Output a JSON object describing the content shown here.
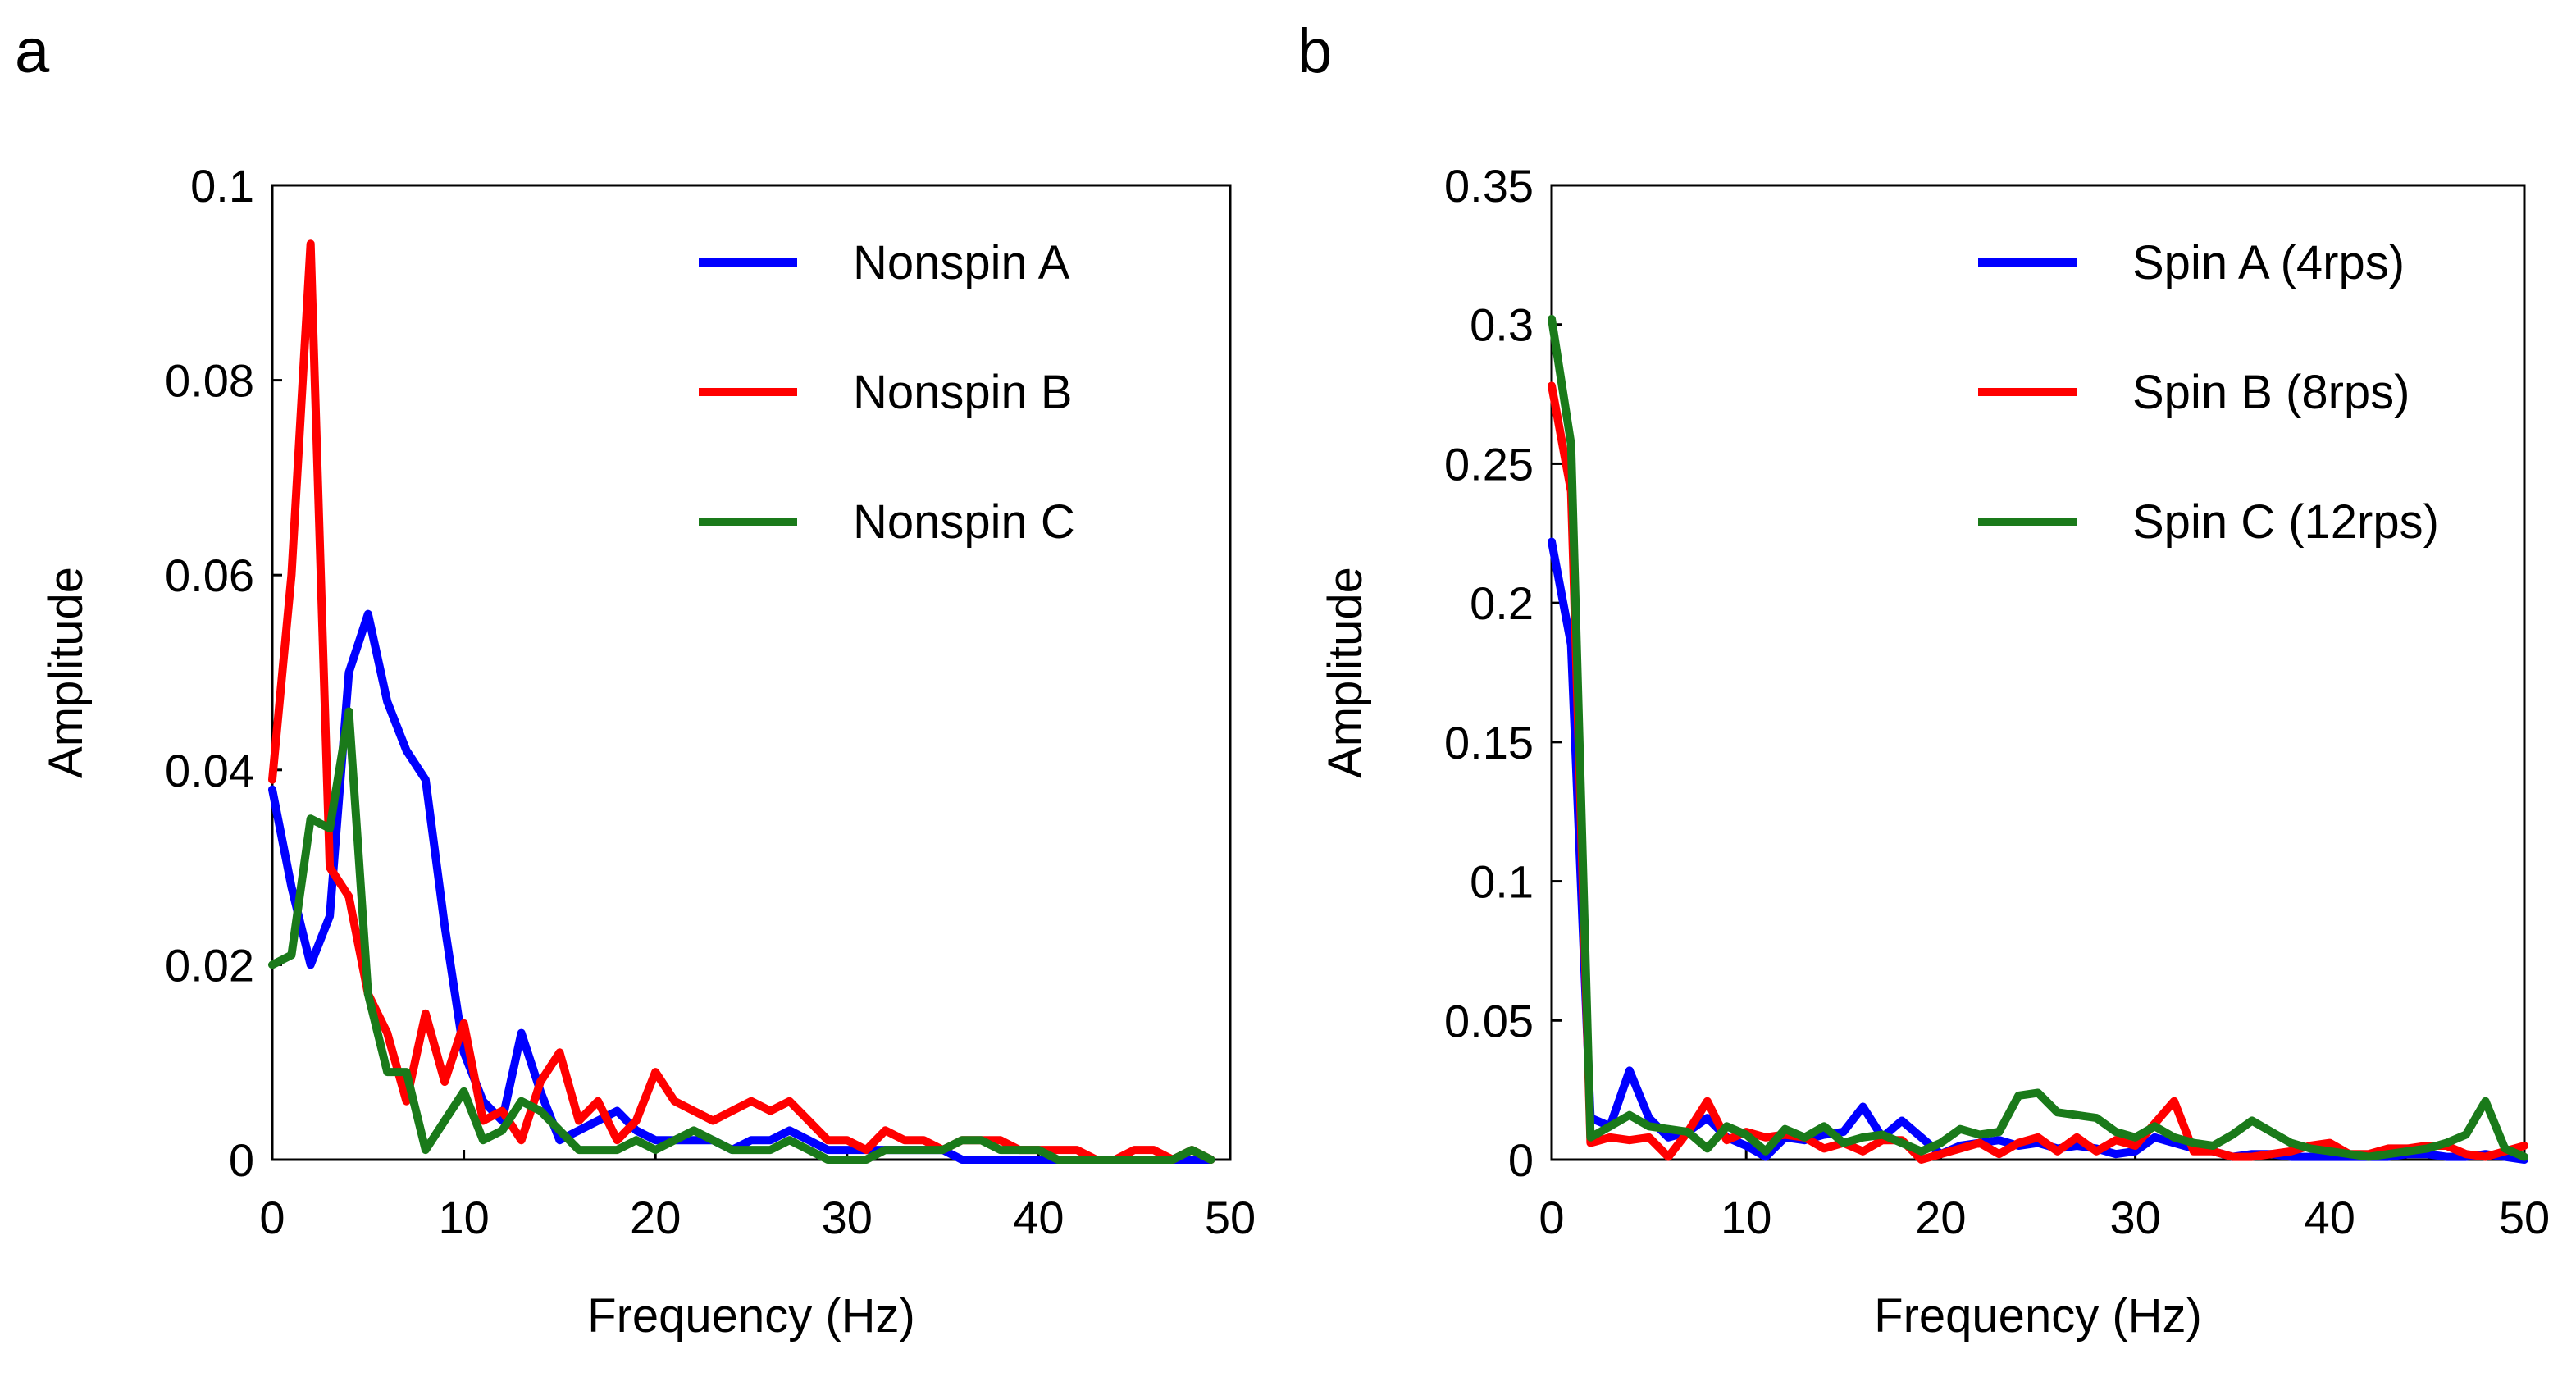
{
  "chart_data": [
    {
      "type": "line",
      "panel": "a",
      "title": "",
      "xlabel": "Frequency (Hz)",
      "ylabel": "Amplitude",
      "xlim": [
        0,
        50
      ],
      "ylim": [
        0,
        0.1
      ],
      "xticks": [
        "0",
        "10",
        "20",
        "30",
        "40",
        "50"
      ],
      "yticks": [
        "0",
        "0.02",
        "0.04",
        "0.06",
        "0.08",
        "0.1"
      ],
      "xtick_values": [
        0,
        10,
        20,
        30,
        40,
        50
      ],
      "ytick_values": [
        0,
        0.02,
        0.04,
        0.06,
        0.08,
        0.1
      ],
      "legend_position": "top-right",
      "grid": false,
      "x": [
        0,
        1,
        2,
        3,
        4,
        5,
        6,
        7,
        8,
        9,
        10,
        11,
        12,
        13,
        14,
        15,
        16,
        17,
        18,
        19,
        20,
        21,
        22,
        23,
        24,
        25,
        26,
        27,
        28,
        29,
        30,
        31,
        32,
        33,
        34,
        35,
        36,
        37,
        38,
        39,
        40,
        41,
        42,
        43,
        44,
        45,
        46,
        47,
        48,
        49
      ],
      "series": [
        {
          "name": "Nonspin A",
          "color": "#0000ff",
          "values": [
            0.038,
            0.028,
            0.02,
            0.025,
            0.05,
            0.056,
            0.047,
            0.042,
            0.039,
            0.024,
            0.011,
            0.006,
            0.004,
            0.013,
            0.007,
            0.002,
            0.003,
            0.004,
            0.005,
            0.003,
            0.002,
            0.002,
            0.002,
            0.002,
            0.001,
            0.002,
            0.002,
            0.003,
            0.002,
            0.001,
            0.001,
            0.001,
            0.001,
            0.001,
            0.001,
            0.001,
            0.0,
            0.0,
            0.0,
            0.0,
            0.0,
            0.0,
            0.0,
            0.0,
            0.0,
            0.0,
            0.0,
            0.0,
            0.0,
            0.0
          ]
        },
        {
          "name": "Nonspin B",
          "color": "#ff0000",
          "values": [
            0.039,
            0.06,
            0.094,
            0.03,
            0.027,
            0.017,
            0.013,
            0.006,
            0.015,
            0.008,
            0.014,
            0.004,
            0.005,
            0.002,
            0.008,
            0.011,
            0.004,
            0.006,
            0.002,
            0.004,
            0.009,
            0.006,
            0.005,
            0.004,
            0.005,
            0.006,
            0.005,
            0.006,
            0.004,
            0.002,
            0.002,
            0.001,
            0.003,
            0.002,
            0.002,
            0.001,
            0.002,
            0.002,
            0.002,
            0.001,
            0.001,
            0.001,
            0.001,
            0.0,
            0.0,
            0.001,
            0.001,
            0.0,
            0.001,
            0.0
          ]
        },
        {
          "name": "Nonspin C",
          "color": "#1a7a1a",
          "values": [
            0.02,
            0.021,
            0.035,
            0.034,
            0.046,
            0.017,
            0.009,
            0.009,
            0.001,
            0.004,
            0.007,
            0.002,
            0.003,
            0.006,
            0.005,
            0.003,
            0.001,
            0.001,
            0.001,
            0.002,
            0.001,
            0.002,
            0.003,
            0.002,
            0.001,
            0.001,
            0.001,
            0.002,
            0.001,
            0.0,
            0.0,
            0.0,
            0.001,
            0.001,
            0.001,
            0.001,
            0.002,
            0.002,
            0.001,
            0.001,
            0.001,
            0.0,
            0.0,
            0.0,
            0.0,
            0.0,
            0.0,
            0.0,
            0.001,
            0.0
          ]
        }
      ]
    },
    {
      "type": "line",
      "panel": "b",
      "title": "",
      "xlabel": "Frequency (Hz)",
      "ylabel": "Amplitude",
      "xlim": [
        0,
        50
      ],
      "ylim": [
        0,
        0.35
      ],
      "xticks": [
        "0",
        "10",
        "20",
        "30",
        "40",
        "50"
      ],
      "yticks": [
        "0",
        "0.05",
        "0.1",
        "0.15",
        "0.2",
        "0.25",
        "0.3",
        "0.35"
      ],
      "xtick_values": [
        0,
        10,
        20,
        30,
        40,
        50
      ],
      "ytick_values": [
        0,
        0.05,
        0.1,
        0.15,
        0.2,
        0.25,
        0.3,
        0.35
      ],
      "legend_position": "top-right",
      "grid": false,
      "x": [
        0,
        1,
        2,
        3,
        4,
        5,
        6,
        7,
        8,
        9,
        10,
        11,
        12,
        13,
        14,
        15,
        16,
        17,
        18,
        19,
        20,
        21,
        22,
        23,
        24,
        25,
        26,
        27,
        28,
        29,
        30,
        31,
        32,
        33,
        34,
        35,
        36,
        37,
        38,
        39,
        40,
        41,
        42,
        43,
        44,
        45,
        46,
        47,
        48,
        49,
        50
      ],
      "series": [
        {
          "name": "Spin A (4rps)",
          "color": "#0000ff",
          "values": [
            0.222,
            0.185,
            0.015,
            0.012,
            0.032,
            0.015,
            0.008,
            0.01,
            0.015,
            0.008,
            0.005,
            0.001,
            0.008,
            0.007,
            0.009,
            0.01,
            0.019,
            0.008,
            0.014,
            0.008,
            0.002,
            0.005,
            0.006,
            0.007,
            0.005,
            0.006,
            0.004,
            0.005,
            0.004,
            0.002,
            0.003,
            0.008,
            0.006,
            0.004,
            0.003,
            0.001,
            0.002,
            0.002,
            0.001,
            0.001,
            0.001,
            0.001,
            0.001,
            0.001,
            0.002,
            0.002,
            0.001,
            0.001,
            0.002,
            0.001,
            0.0
          ]
        },
        {
          "name": "Spin B (8rps)",
          "color": "#ff0000",
          "values": [
            0.278,
            0.24,
            0.006,
            0.008,
            0.007,
            0.008,
            0.001,
            0.01,
            0.021,
            0.007,
            0.01,
            0.008,
            0.009,
            0.008,
            0.004,
            0.006,
            0.003,
            0.007,
            0.007,
            0.0,
            0.002,
            0.004,
            0.006,
            0.002,
            0.006,
            0.008,
            0.003,
            0.008,
            0.003,
            0.007,
            0.005,
            0.013,
            0.021,
            0.003,
            0.003,
            0.001,
            0.001,
            0.002,
            0.003,
            0.005,
            0.006,
            0.002,
            0.002,
            0.004,
            0.004,
            0.005,
            0.005,
            0.002,
            0.001,
            0.003,
            0.005
          ]
        },
        {
          "name": "Spin C (12rps)",
          "color": "#1a7a1a",
          "values": [
            0.302,
            0.257,
            0.008,
            0.012,
            0.016,
            0.012,
            0.011,
            0.01,
            0.004,
            0.012,
            0.009,
            0.003,
            0.011,
            0.008,
            0.012,
            0.006,
            0.008,
            0.009,
            0.006,
            0.003,
            0.006,
            0.011,
            0.009,
            0.01,
            0.023,
            0.024,
            0.017,
            0.016,
            0.015,
            0.01,
            0.008,
            0.012,
            0.008,
            0.006,
            0.005,
            0.009,
            0.014,
            0.01,
            0.006,
            0.004,
            0.003,
            0.002,
            0.001,
            0.002,
            0.003,
            0.004,
            0.006,
            0.009,
            0.021,
            0.004,
            0.001
          ]
        }
      ]
    }
  ]
}
